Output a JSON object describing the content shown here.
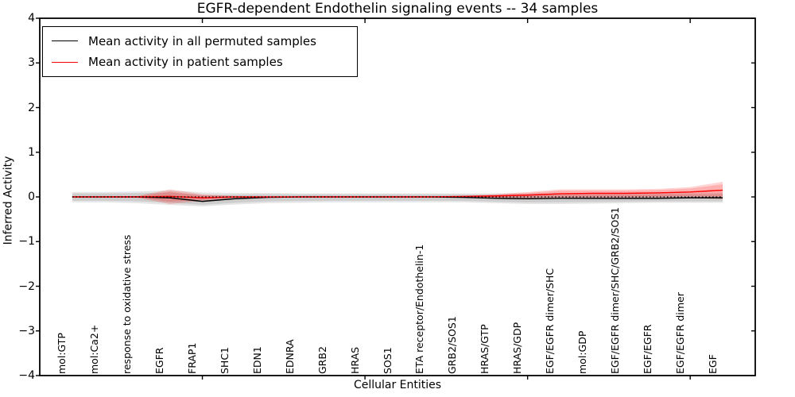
{
  "chart_data": {
    "type": "line",
    "title": "EGFR-dependent Endothelin signaling events -- 34 samples",
    "xlabel": "Cellular Entities",
    "ylabel": "Inferred Activity",
    "ylim": [
      -4,
      4
    ],
    "xlim_index": [
      -1,
      21
    ],
    "grid": false,
    "legend_position": "upper-left",
    "ytick_values": [
      -4,
      -3,
      -2,
      -1,
      0,
      1,
      2,
      3,
      4
    ],
    "ytick_labels": [
      "−4",
      "−3",
      "−2",
      "−1",
      "0",
      "1",
      "2",
      "3",
      "4"
    ],
    "xtick_mark_indices": [
      4,
      9,
      14,
      19
    ],
    "categories": [
      "mol:GTP",
      "mol:Ca2+",
      "response to oxidative stress",
      "EGFR",
      "FRAP1",
      "SHC1",
      "EDN1",
      "EDNRA",
      "GRB2",
      "HRAS",
      "SOS1",
      "ETA receptor/Endothelin-1",
      "GRB2/SOS1",
      "HRAS/GTP",
      "HRAS/GDP",
      "EGF/EGFR dimer/SHC",
      "mol:GDP",
      "EGF/EGFR dimer/SHC/GRB2/SOS1",
      "EGF/EGFR",
      "EGF/EGFR dimer",
      "EGF"
    ],
    "series": [
      {
        "name": "Mean activity in all permuted samples",
        "color": "#000000",
        "band_color": "rgba(0,0,0,0.10)",
        "values": [
          0,
          0,
          0,
          -0.02,
          -0.1,
          -0.04,
          -0.01,
          0,
          0,
          0,
          0,
          0,
          -0.01,
          -0.03,
          -0.04,
          -0.03,
          -0.03,
          -0.03,
          -0.03,
          -0.02,
          -0.02
        ],
        "band_upper": [
          0.11,
          0.11,
          0.12,
          0.15,
          0.1,
          0.09,
          0.09,
          0.08,
          0.08,
          0.08,
          0.08,
          0.08,
          0.08,
          0.08,
          0.08,
          0.08,
          0.08,
          0.08,
          0.09,
          0.09,
          0.1
        ],
        "band_lower": [
          -0.12,
          -0.12,
          -0.14,
          -0.18,
          -0.21,
          -0.17,
          -0.14,
          -0.13,
          -0.12,
          -0.12,
          -0.12,
          -0.12,
          -0.12,
          -0.14,
          -0.16,
          -0.16,
          -0.15,
          -0.14,
          -0.13,
          -0.13,
          -0.13
        ]
      },
      {
        "name": "Mean activity in patient samples",
        "color": "#ff0000",
        "band_color": "rgba(255,0,0,0.17)",
        "values": [
          0,
          0,
          0,
          0.01,
          -0.02,
          0,
          0,
          0,
          0,
          0,
          0,
          0,
          0.01,
          0.02,
          0.04,
          0.07,
          0.08,
          0.08,
          0.09,
          0.11,
          0.15
        ],
        "band_upper": [
          0.01,
          0.01,
          0.02,
          0.17,
          0.06,
          0.02,
          0.01,
          0.01,
          0.01,
          0.01,
          0.01,
          0.01,
          0.02,
          0.06,
          0.11,
          0.17,
          0.17,
          0.17,
          0.18,
          0.22,
          0.34
        ],
        "band_lower": [
          -0.01,
          -0.01,
          -0.02,
          -0.16,
          -0.09,
          -0.02,
          -0.01,
          -0.01,
          -0.01,
          -0.01,
          -0.01,
          -0.01,
          -0.01,
          -0.02,
          -0.03,
          -0.04,
          -0.04,
          -0.04,
          -0.03,
          -0.02,
          -0.05
        ]
      }
    ],
    "reference_line": {
      "value": 0,
      "style": "dotted",
      "color": "#000000"
    }
  }
}
